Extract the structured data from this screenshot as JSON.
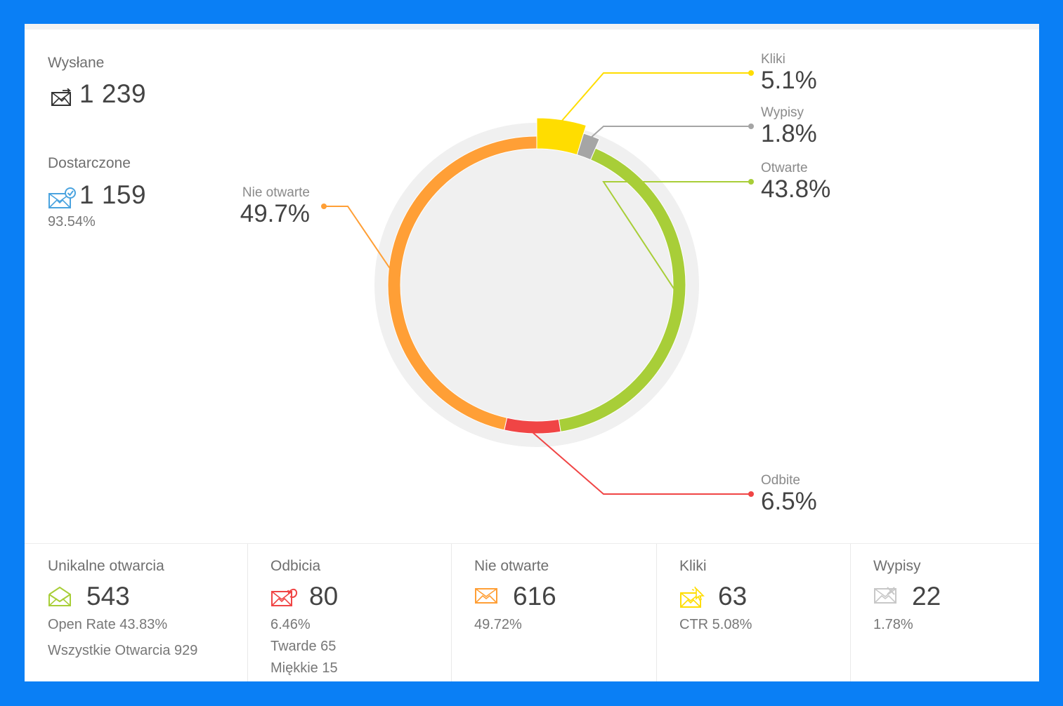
{
  "summary": {
    "sent": {
      "label": "Wysłane",
      "value": "1 239"
    },
    "delivered": {
      "label": "Dostarczone",
      "value": "1 159",
      "percent": "93.54%"
    }
  },
  "chart_data": {
    "type": "pie",
    "variant": "donut",
    "slices": [
      {
        "label": "Kliki",
        "value": 5.1,
        "display": "5.1%",
        "color": "#ffdd00"
      },
      {
        "label": "Wypisy",
        "value": 1.8,
        "display": "1.8%",
        "color": "#a5a5a5"
      },
      {
        "label": "Otwarte",
        "value": 43.8,
        "display": "43.8%",
        "color": "#a8ce38"
      },
      {
        "label": "Odbite",
        "value": 6.5,
        "display": "6.5%",
        "color": "#f04545"
      },
      {
        "label": "Nie otwarte",
        "value": 49.7,
        "display": "49.7%",
        "color": "#ff9f36"
      }
    ]
  },
  "cards": [
    {
      "label": "Unikalne otwarcia",
      "value": "543",
      "subs": [
        "Open Rate 43.83%",
        "Wszystkie Otwarcia 929"
      ],
      "icon": "open-envelope-icon",
      "color": "#a8ce38"
    },
    {
      "label": "Odbicia",
      "value": "80",
      "subs": [
        "6.46%",
        "Twarde 65",
        "Miękkie 15"
      ],
      "icon": "bounce-envelope-icon",
      "color": "#f04545"
    },
    {
      "label": "Nie otwarte",
      "value": "616",
      "subs": [
        "49.72%"
      ],
      "icon": "closed-envelope-icon",
      "color": "#ff9f36"
    },
    {
      "label": "Kliki",
      "value": "63",
      "subs": [
        "CTR 5.08%"
      ],
      "icon": "click-envelope-icon",
      "color": "#ffdd00"
    },
    {
      "label": "Wypisy",
      "value": "22",
      "subs": [
        "1.78%"
      ],
      "icon": "unsubscribe-envelope-icon",
      "color": "#c8c8c8"
    }
  ]
}
